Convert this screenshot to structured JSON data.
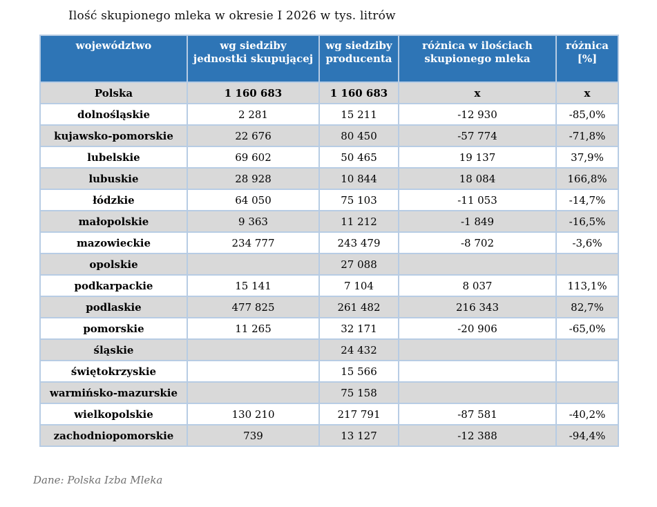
{
  "page": {
    "title": "Ilość skupionego mleka w okresie I 2026 w tys. litrów",
    "source_note": "Dane: Polska Izba Mleka"
  },
  "colors": {
    "header_bg": "#2E75B6",
    "header_text": "#FFFFFF",
    "row_alt_bg": "#D9D9D9",
    "row_bg": "#FFFFFF",
    "cell_border": "#B7CCE4",
    "body_text": "#000000",
    "source_text": "#6F6F6F"
  },
  "table": {
    "columns": [
      {
        "line1": "województwo",
        "line2": ""
      },
      {
        "line1": "wg siedziby",
        "line2": "jednostki skupującej"
      },
      {
        "line1": "wg siedziby",
        "line2": "producenta"
      },
      {
        "line1": "różnica w ilościach",
        "line2": "skupionego mleka"
      },
      {
        "line1": "różnica",
        "line2": "[%]"
      }
    ],
    "rows": [
      {
        "region": "Polska",
        "by_purchaser": "1 160 683",
        "by_producer": "1 160 683",
        "difference": "x",
        "difference_pct": "x"
      },
      {
        "region": "dolnośląskie",
        "by_purchaser": "2 281",
        "by_producer": "15 211",
        "difference": "-12 930",
        "difference_pct": "-85,0%"
      },
      {
        "region": "kujawsko-pomorskie",
        "by_purchaser": "22 676",
        "by_producer": "80 450",
        "difference": "-57 774",
        "difference_pct": "-71,8%"
      },
      {
        "region": "lubelskie",
        "by_purchaser": "69 602",
        "by_producer": "50 465",
        "difference": "19 137",
        "difference_pct": "37,9%"
      },
      {
        "region": "lubuskie",
        "by_purchaser": "28 928",
        "by_producer": "10 844",
        "difference": "18 084",
        "difference_pct": "166,8%"
      },
      {
        "region": "łódzkie",
        "by_purchaser": "64 050",
        "by_producer": "75 103",
        "difference": "-11 053",
        "difference_pct": "-14,7%"
      },
      {
        "region": "małopolskie",
        "by_purchaser": "9 363",
        "by_producer": "11 212",
        "difference": "-1 849",
        "difference_pct": "-16,5%"
      },
      {
        "region": "mazowieckie",
        "by_purchaser": "234 777",
        "by_producer": "243 479",
        "difference": "-8 702",
        "difference_pct": "-3,6%"
      },
      {
        "region": "opolskie",
        "by_purchaser": "",
        "by_producer": "27 088",
        "difference": "",
        "difference_pct": ""
      },
      {
        "region": "podkarpackie",
        "by_purchaser": "15 141",
        "by_producer": "7 104",
        "difference": "8 037",
        "difference_pct": "113,1%"
      },
      {
        "region": "podlaskie",
        "by_purchaser": "477 825",
        "by_producer": "261 482",
        "difference": "216 343",
        "difference_pct": "82,7%"
      },
      {
        "region": "pomorskie",
        "by_purchaser": "11 265",
        "by_producer": "32 171",
        "difference": "-20 906",
        "difference_pct": "-65,0%"
      },
      {
        "region": "śląskie",
        "by_purchaser": "",
        "by_producer": "24 432",
        "difference": "",
        "difference_pct": ""
      },
      {
        "region": "świętokrzyskie",
        "by_purchaser": "",
        "by_producer": "15 566",
        "difference": "",
        "difference_pct": ""
      },
      {
        "region": "warmińsko-mazurskie",
        "by_purchaser": "",
        "by_producer": "75 158",
        "difference": "",
        "difference_pct": ""
      },
      {
        "region": "wielkopolskie",
        "by_purchaser": "130 210",
        "by_producer": "217 791",
        "difference": "-87 581",
        "difference_pct": "-40,2%"
      },
      {
        "region": "zachodniopomorskie",
        "by_purchaser": "739",
        "by_producer": "13 127",
        "difference": "-12 388",
        "difference_pct": "-94,4%"
      }
    ]
  }
}
